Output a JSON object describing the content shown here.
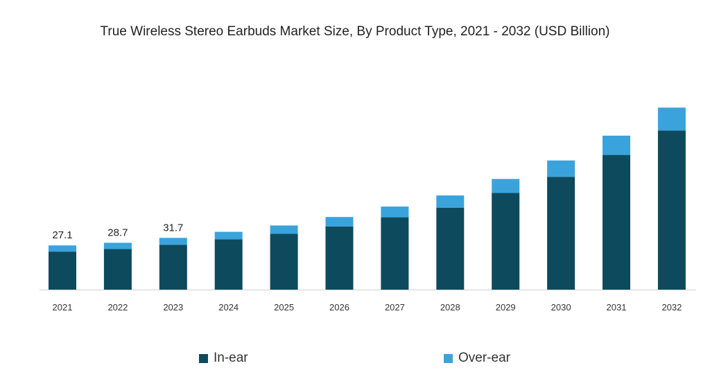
{
  "chart_data": {
    "type": "bar",
    "stacked": true,
    "title": "True Wireless Stereo Earbuds Market Size, By Product Type, 2021 - 2032 (USD Billion)",
    "xlabel": "",
    "ylabel": "",
    "grid": false,
    "legend_position": "bottom",
    "categories": [
      "2021",
      "2022",
      "2023",
      "2024",
      "2025",
      "2026",
      "2027",
      "2028",
      "2029",
      "2030",
      "2031",
      "2032"
    ],
    "series": [
      {
        "name": "In-ear",
        "color": "#0d4a5e",
        "values": [
          23.3,
          24.9,
          27.5,
          30.8,
          34.2,
          38.7,
          44.3,
          50.2,
          59.2,
          69.1,
          82.5,
          97.5
        ]
      },
      {
        "name": "Over-ear",
        "color": "#3aa3dc",
        "values": [
          3.8,
          3.8,
          4.2,
          4.6,
          5.1,
          5.8,
          6.6,
          7.5,
          8.6,
          10.0,
          11.8,
          14.0
        ]
      }
    ],
    "data_labels": [
      {
        "category": "2021",
        "text": "27.1"
      },
      {
        "category": "2022",
        "text": "28.7"
      },
      {
        "category": "2023",
        "text": "31.7"
      }
    ],
    "ylim": [
      0,
      118
    ]
  }
}
